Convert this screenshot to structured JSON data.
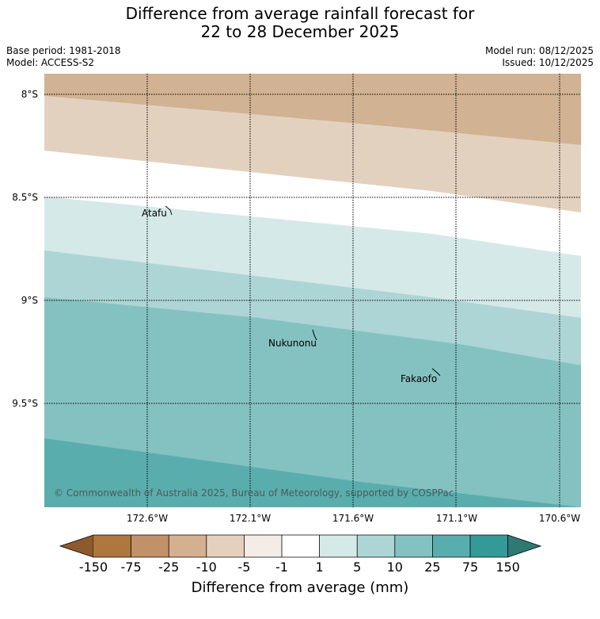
{
  "title": {
    "line1": "Difference from average rainfall forecast for",
    "line2": "22 to 28 December 2025"
  },
  "meta": {
    "base_period": "Base period: 1981-2018",
    "model": "Model: ACCESS-S2",
    "model_run": "Model run: 08/12/2025",
    "issued": "Issued: 10/12/2025"
  },
  "map": {
    "lat_labels": [
      "8°S",
      "8.5°S",
      "9°S",
      "9.5°S"
    ],
    "lon_labels": [
      "172.6°W",
      "172.1°W",
      "171.6°W",
      "171.1°W",
      "170.6°W"
    ],
    "places": [
      {
        "name": "Atafu"
      },
      {
        "name": "Nukunonu"
      },
      {
        "name": "Fakaofo"
      }
    ],
    "copyright": "© Commonwealth of Australia 2025, Bureau of Meteorology, supported by COSPPac"
  },
  "colorbar": {
    "labels": [
      "-150",
      "-75",
      "-25",
      "-10",
      "-5",
      "-1",
      "1",
      "5",
      "10",
      "25",
      "75",
      "150"
    ],
    "colors": {
      "lt_-150": "#8c5a2d",
      "-150_-75": "#ad773d",
      "-75_-25": "#c19167",
      "-25_-10": "#d3b090",
      "-10_-5": "#e4d0bd",
      "-5_-1": "#f4ede7",
      "-1_1": "#ffffff",
      "1_5": "#d5e9e8",
      "5_10": "#add5d5",
      "10_25": "#84c2c1",
      "25_75": "#5aadad",
      "75_150": "#339a98",
      "gt_150": "#2f7973"
    },
    "title": "Difference from average (mm)"
  }
}
